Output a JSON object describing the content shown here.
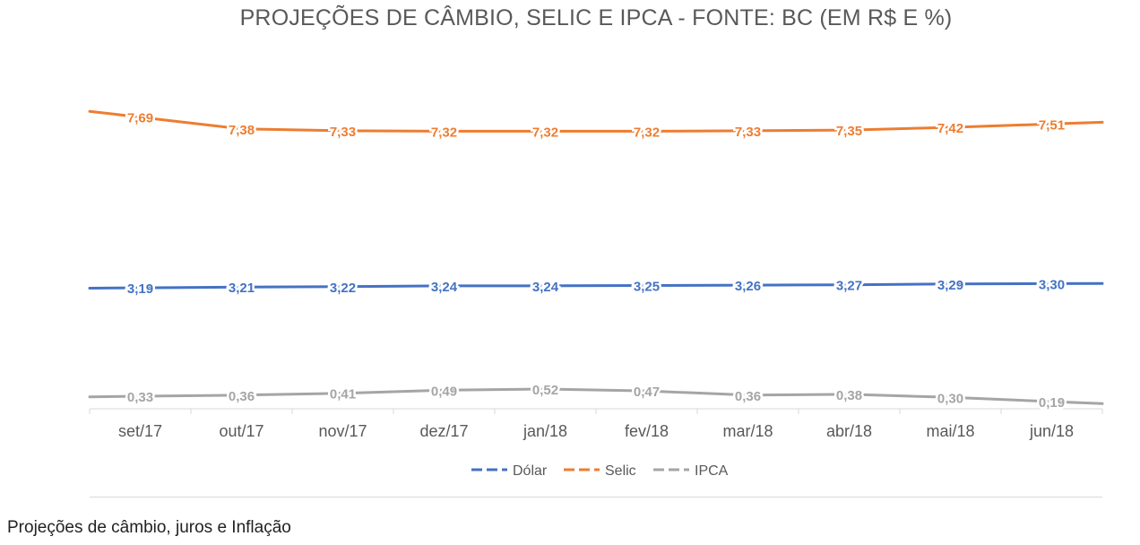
{
  "chart_data": {
    "type": "line",
    "title": "PROJEÇÕES DE CÂMBIO, SELIC E IPCA - FONTE: BC (EM R$ E %)",
    "categories": [
      "set/17",
      "out/17",
      "nov/17",
      "dez/17",
      "jan/18",
      "fev/18",
      "mar/18",
      "abr/18",
      "mai/18",
      "jun/18"
    ],
    "series": [
      {
        "name": "Dólar",
        "color": "#4472c4",
        "values": [
          3.19,
          3.21,
          3.22,
          3.24,
          3.24,
          3.25,
          3.26,
          3.27,
          3.29,
          3.3
        ],
        "labels": [
          "3,19",
          "3,21",
          "3,22",
          "3,24",
          "3,24",
          "3,25",
          "3,26",
          "3,27",
          "3,29",
          "3,30"
        ]
      },
      {
        "name": "Selic",
        "color": "#ed7d31",
        "values": [
          7.69,
          7.38,
          7.33,
          7.32,
          7.32,
          7.32,
          7.33,
          7.35,
          7.42,
          7.51
        ],
        "labels": [
          "7,69",
          "7,38",
          "7,33",
          "7,32",
          "7,32",
          "7,32",
          "7,33",
          "7,35",
          "7,42",
          "7,51"
        ]
      },
      {
        "name": "IPCA",
        "color": "#a5a5a5",
        "values": [
          0.33,
          0.36,
          0.41,
          0.49,
          0.52,
          0.47,
          0.36,
          0.38,
          0.3,
          0.19
        ],
        "labels": [
          "0,33",
          "0,36",
          "0,41",
          "0,49",
          "0,52",
          "0,47",
          "0,36",
          "0,38",
          "0,30",
          "0,19"
        ]
      }
    ],
    "legend_position": "bottom",
    "grid": false
  },
  "caption": "Projeções de câmbio, juros e Inflação"
}
